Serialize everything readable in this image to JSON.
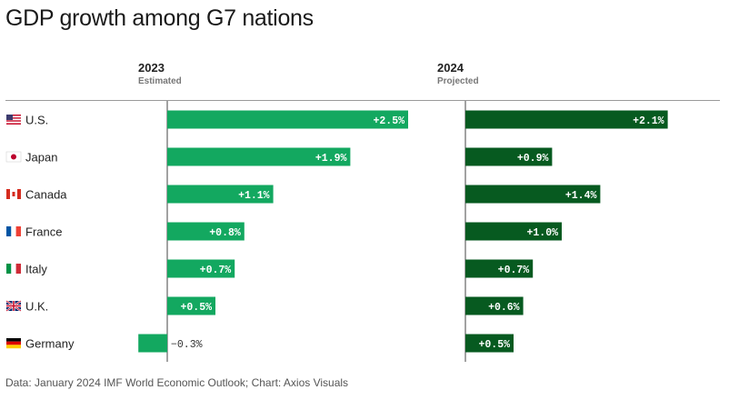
{
  "title": "GDP growth among G7 nations",
  "source": "Data: January 2024 IMF World Economic Outlook; Chart: Axios Visuals",
  "chart_data": {
    "type": "bar",
    "orientation": "horizontal",
    "categories": [
      "U.S.",
      "Japan",
      "Canada",
      "France",
      "Italy",
      "U.K.",
      "Germany"
    ],
    "series": [
      {
        "name": "2023",
        "subtitle": "Estimated",
        "values": [
          2.5,
          1.9,
          1.1,
          0.8,
          0.7,
          0.5,
          -0.3
        ],
        "labels": [
          "+2.5%",
          "+1.9%",
          "+1.1%",
          "+0.8%",
          "+0.7%",
          "+0.5%",
          "−0.3%"
        ],
        "color": "#13a860"
      },
      {
        "name": "2024",
        "subtitle": "Projected",
        "values": [
          2.1,
          0.9,
          1.4,
          1.0,
          0.7,
          0.6,
          0.5
        ],
        "labels": [
          "+2.1%",
          "+0.9%",
          "+1.4%",
          "+1.0%",
          "+0.7%",
          "+0.6%",
          "+0.5%"
        ],
        "color": "#075a20"
      }
    ],
    "flags": [
      "us-flag-icon",
      "japan-flag-icon",
      "canada-flag-icon",
      "france-flag-icon",
      "italy-flag-icon",
      "uk-flag-icon",
      "germany-flag-icon"
    ],
    "xlim": [
      -0.5,
      2.5
    ]
  }
}
